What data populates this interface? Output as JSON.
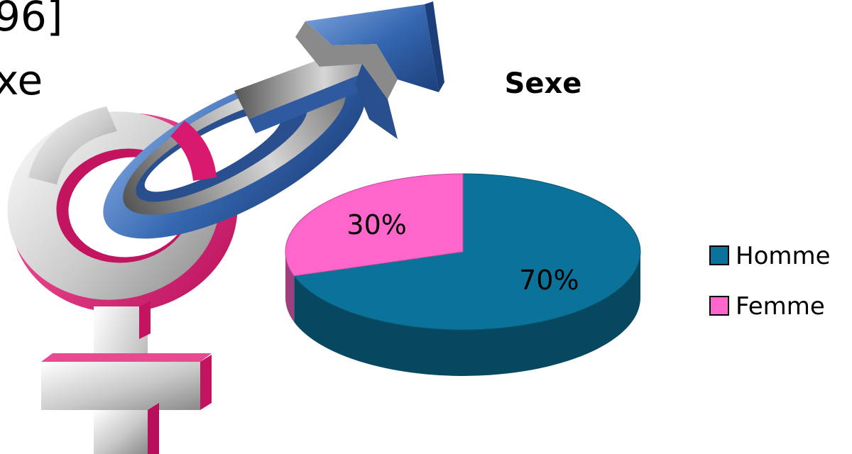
{
  "slide": {
    "text_top_fragment": "96]",
    "text_bottom_fragment": "xe"
  },
  "chart_data": {
    "type": "pie",
    "style": "3d",
    "title": "Sexe",
    "categories": [
      "Homme",
      "Femme"
    ],
    "values": [
      70,
      30
    ],
    "data_labels": [
      "70%",
      "30%"
    ],
    "colors": [
      "#0b7399",
      "#ff66cc"
    ],
    "legend_position": "right"
  },
  "decoration": {
    "icon": "gender-symbols-icon",
    "colors": {
      "male": "#3a6db5",
      "female": "#d9186f",
      "silver": "#cfcfcf"
    }
  }
}
